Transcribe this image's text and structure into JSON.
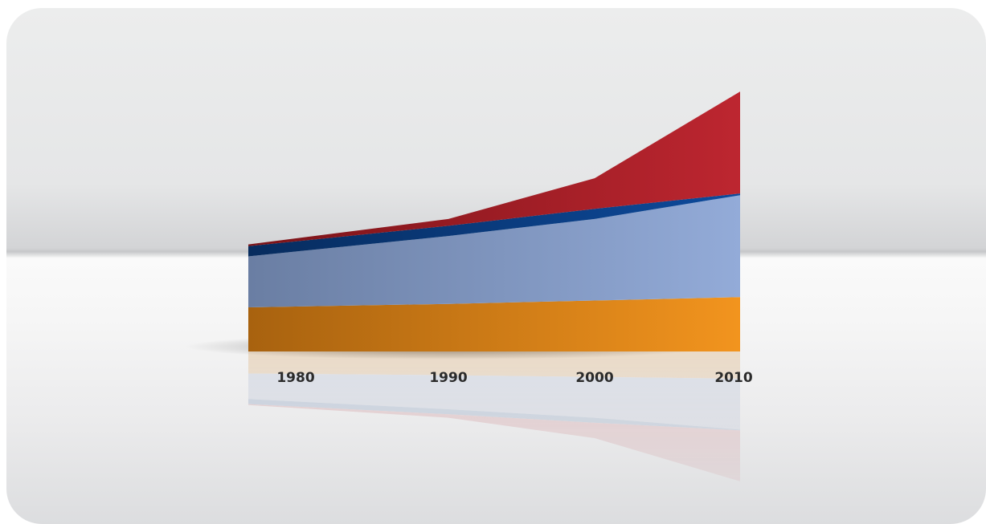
{
  "chart_data": {
    "type": "area",
    "stacked": true,
    "categories": [
      "1980",
      "1990",
      "2000",
      "2010"
    ],
    "series": [
      {
        "values": [
          13,
          14,
          15,
          16
        ],
        "color": "#c87816"
      },
      {
        "values": [
          15,
          20,
          24,
          30
        ],
        "color": "#7f92bb"
      },
      {
        "values": [
          3,
          3,
          3,
          0.5
        ],
        "color": "#0a3f86"
      },
      {
        "values": [
          0.5,
          2,
          9,
          30
        ],
        "color": "#b0232b"
      }
    ],
    "title": "",
    "xlabel": "",
    "ylabel": "",
    "ylim": [
      0,
      77
    ],
    "grid": false,
    "legend": "none",
    "reflection": true
  }
}
